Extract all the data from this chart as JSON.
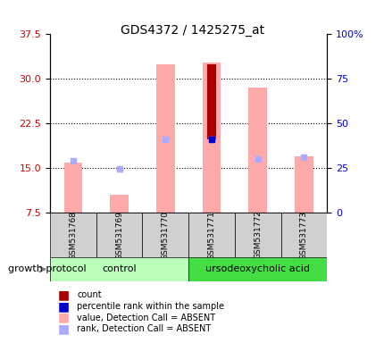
{
  "title": "GDS4372 / 1425275_at",
  "samples": [
    "GSM531768",
    "GSM531769",
    "GSM531770",
    "GSM531771",
    "GSM531772",
    "GSM531773"
  ],
  "groups": [
    "control",
    "control",
    "control",
    "ursodeoxycholic acid",
    "ursodeoxycholic acid",
    "ursodeoxycholic acid"
  ],
  "group_colors": {
    "control": "#aaffaa",
    "ursodeoxycholic acid": "#44cc44"
  },
  "ylim_left": [
    7.5,
    37.5
  ],
  "yticks_left": [
    7.5,
    15.0,
    22.5,
    30.0,
    37.5
  ],
  "ylim_right": [
    0,
    100
  ],
  "yticks_right": [
    0,
    25,
    50,
    75,
    100
  ],
  "ytick_labels_right": [
    "0",
    "25",
    "50",
    "75",
    "100%"
  ],
  "pink_bar_tops": [
    16.0,
    10.5,
    32.5,
    32.7,
    28.5,
    17.0
  ],
  "pink_bar_bottoms": [
    7.5,
    7.5,
    7.5,
    7.5,
    7.5,
    7.5
  ],
  "rank_absent_values": [
    16.2,
    14.9,
    19.8,
    19.8,
    16.5,
    16.8
  ],
  "count_bar_tops": [
    null,
    null,
    null,
    32.5,
    null,
    null
  ],
  "count_bar_bottoms": [
    null,
    null,
    null,
    19.8,
    null,
    null
  ],
  "percentile_values": [
    null,
    null,
    null,
    19.8,
    null,
    null
  ],
  "pink_color": "#ffaaaa",
  "dark_red_color": "#aa0000",
  "blue_color": "#0000cc",
  "light_blue_color": "#aaaaff",
  "grid_color": "#000000",
  "left_axis_color": "#cc0000",
  "right_axis_color": "#0000cc",
  "bar_width": 0.4,
  "legend_items": [
    {
      "label": "count",
      "color": "#aa0000",
      "marker": "s"
    },
    {
      "label": "percentile rank within the sample",
      "color": "#0000cc",
      "marker": "s"
    },
    {
      "label": "value, Detection Call = ABSENT",
      "color": "#ffaaaa",
      "marker": "s"
    },
    {
      "label": "rank, Detection Call = ABSENT",
      "color": "#aaaaff",
      "marker": "s"
    }
  ]
}
